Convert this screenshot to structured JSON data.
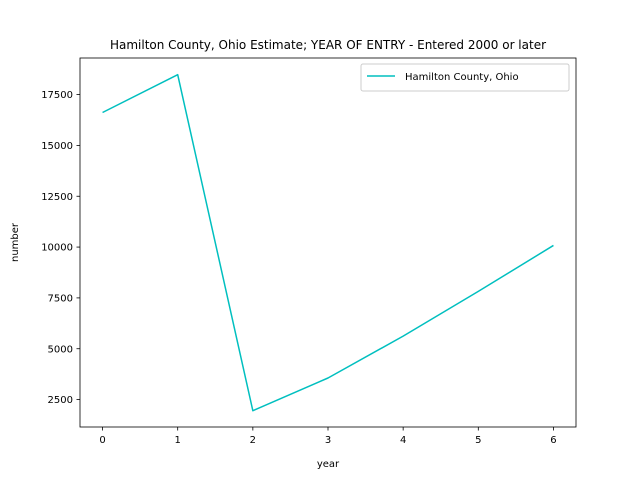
{
  "chart_data": {
    "type": "line",
    "title": "Hamilton County, Ohio Estimate; YEAR OF ENTRY - Entered 2000 or later",
    "xlabel": "year",
    "ylabel": "number",
    "x": [
      0,
      1,
      2,
      3,
      4,
      5,
      6
    ],
    "xticks": [
      0,
      1,
      2,
      3,
      4,
      5,
      6
    ],
    "yticks": [
      2500,
      5000,
      7500,
      10000,
      12500,
      15000,
      17500
    ],
    "xlim": [
      -0.3,
      6.3
    ],
    "ylim": [
      1150,
      19300
    ],
    "series": [
      {
        "name": "Hamilton County, Ohio",
        "color": "#00bfbf",
        "values": [
          16620,
          18480,
          1950,
          3560,
          5620,
          7820,
          10080
        ]
      }
    ],
    "legend": "top-right",
    "grid": false
  }
}
